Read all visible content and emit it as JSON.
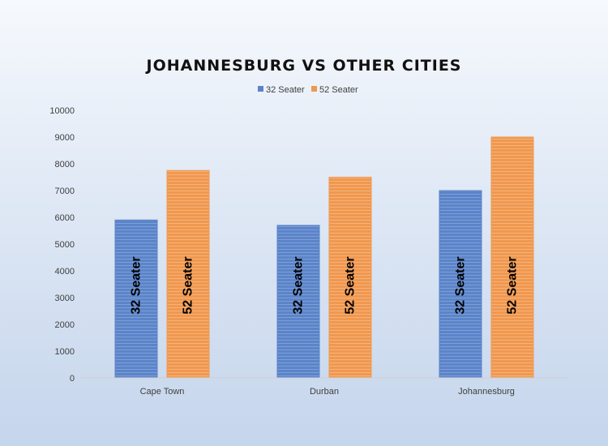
{
  "chart_data": {
    "type": "bar",
    "title": "JOHANNESBURG VS OTHER CITIES",
    "categories": [
      "Cape Town",
      "Durban",
      "Johannesburg"
    ],
    "series": [
      {
        "name": "32 Seater",
        "values": [
          5900,
          5700,
          7000
        ],
        "color": "#5b84c9"
      },
      {
        "name": "52 Seater",
        "values": [
          7750,
          7500,
          9000
        ],
        "color": "#f0984f"
      }
    ],
    "ylim": [
      0,
      10000
    ],
    "yticks": [
      0,
      1000,
      2000,
      3000,
      4000,
      5000,
      6000,
      7000,
      8000,
      9000,
      10000
    ],
    "grid": false,
    "legend_position": "top",
    "data_labels": "series-name"
  }
}
